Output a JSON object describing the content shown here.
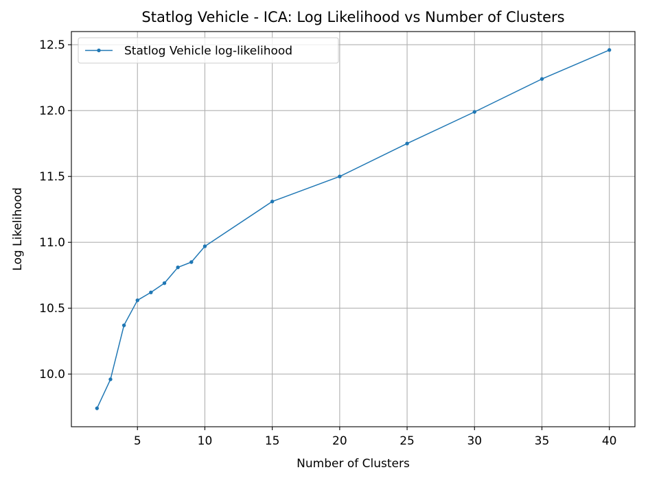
{
  "chart_data": {
    "type": "line",
    "title": "Statlog Vehicle - ICA: Log Likelihood vs Number of Clusters",
    "xlabel": "Number of Clusters",
    "ylabel": "Log Likelihood",
    "xlim": [
      0.1,
      41.9
    ],
    "ylim": [
      9.6,
      12.6
    ],
    "xticks": [
      5,
      10,
      15,
      20,
      25,
      30,
      35,
      40
    ],
    "xtick_labels": [
      "5",
      "10",
      "15",
      "20",
      "25",
      "30",
      "35",
      "40"
    ],
    "yticks": [
      10.0,
      10.5,
      11.0,
      11.5,
      12.0,
      12.5
    ],
    "ytick_labels": [
      "10.0",
      "10.5",
      "11.0",
      "11.5",
      "12.0",
      "12.5"
    ],
    "grid": true,
    "legend_position": "upper-left",
    "colors": {
      "series": "#1f77b4",
      "grid": "#b0b0b0",
      "axes": "#000000"
    },
    "x": [
      2,
      3,
      4,
      5,
      6,
      7,
      8,
      9,
      10,
      15,
      20,
      25,
      30,
      35,
      40
    ],
    "series": [
      {
        "name": "Statlog Vehicle log-likelihood",
        "values": [
          9.74,
          9.96,
          10.37,
          10.56,
          10.62,
          10.69,
          10.81,
          10.85,
          10.97,
          11.31,
          11.5,
          11.75,
          11.99,
          12.24,
          12.46
        ]
      }
    ]
  }
}
